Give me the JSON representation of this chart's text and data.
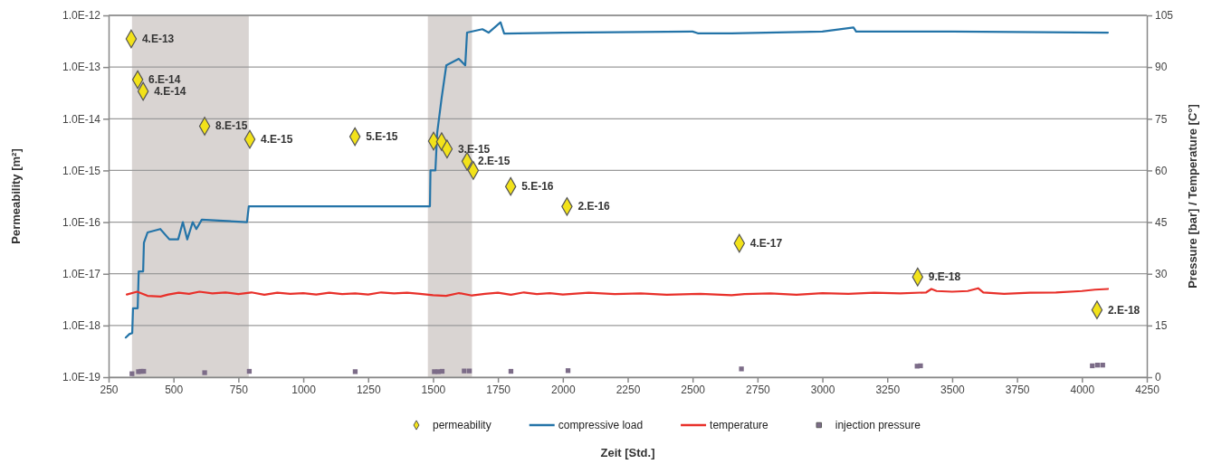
{
  "chart_data": {
    "type": "scatter",
    "xlabel": "Zeit [Std.]",
    "ylabel": "Permeability  [m²]",
    "y2label": "Pressure [bar]  /  Temperature [C°]",
    "xlim": [
      250,
      4250
    ],
    "xticks": [
      250,
      500,
      750,
      1000,
      1250,
      1500,
      1750,
      2000,
      2250,
      2500,
      2750,
      3000,
      3250,
      3500,
      3750,
      4000,
      4250
    ],
    "ylim": [
      1e-19,
      1e-12
    ],
    "yticks": [
      {
        "value": 1e-19,
        "label": "1.0E-19"
      },
      {
        "value": 1e-18,
        "label": "1.0E-18"
      },
      {
        "value": 1e-17,
        "label": "1.0E-17"
      },
      {
        "value": 1e-16,
        "label": "1.0E-16"
      },
      {
        "value": 1e-15,
        "label": "1.0E-15"
      },
      {
        "value": 1e-14,
        "label": "1.0E-14"
      },
      {
        "value": 1e-13,
        "label": "1.0E-13"
      },
      {
        "value": 1e-12,
        "label": "1.0E-12"
      }
    ],
    "log": "y",
    "y2lim": [
      0,
      105
    ],
    "y2ticks": [
      0,
      15,
      30,
      45,
      60,
      75,
      90,
      105
    ],
    "grid": "y",
    "legend": "bottom",
    "bands": [
      {
        "axis": "x",
        "from": 340,
        "to": 790,
        "color": "#d9d4d2"
      },
      {
        "axis": "x",
        "from": 1480,
        "to": 1650,
        "color": "#d9d4d2"
      }
    ],
    "series": [
      {
        "name": "permeability",
        "marker": "diamond",
        "color": "#f2e21a",
        "x": [
          337,
          362,
          383,
          620,
          794,
          1199,
          1502,
          1533,
          1554,
          1631,
          1655,
          1799,
          2016,
          2680,
          3367,
          4058
        ],
        "values": [
          3.5e-13,
          5.7e-14,
          3.4e-14,
          7.2e-15,
          4e-15,
          4.5e-15,
          3.7e-15,
          3.6e-15,
          2.6e-15,
          1.5e-15,
          1e-15,
          4.9e-16,
          2e-16,
          3.9e-17,
          8.7e-18,
          2e-18
        ],
        "value_labels": [
          "4.E-13",
          "6.E-14",
          "4.E-14",
          "8.E-15",
          "4.E-15",
          "5.E-15",
          null,
          null,
          "3.E-15",
          "2.E-15",
          null,
          "5.E-16",
          "2.E-16",
          "4.E-17",
          "9.E-18",
          "2.E-18"
        ]
      },
      {
        "name": "compressive load",
        "type": "line",
        "axis": "y2",
        "color": "#2474a8",
        "x": [
          316,
          330,
          341,
          344,
          362,
          366,
          383,
          386,
          400,
          449,
          484,
          518,
          536,
          553,
          574,
          588,
          609,
          783,
          790,
          1488,
          1490,
          1509,
          1516,
          1533,
          1551,
          1599,
          1624,
          1631,
          1690,
          1714,
          1760,
          1774,
          2000,
          2500,
          2520,
          2650,
          3000,
          3120,
          3130,
          3500,
          4100
        ],
        "values": [
          11.5,
          12.5,
          12.8,
          20,
          20,
          30.7,
          30.7,
          39,
          42,
          43,
          40,
          40,
          45,
          40,
          45,
          43,
          45.7,
          45,
          49.6,
          49.6,
          60,
          60,
          71,
          81,
          90.5,
          92.4,
          90.5,
          100,
          101,
          100,
          103,
          99.7,
          100,
          100.3,
          99.8,
          99.8,
          100.3,
          101.5,
          100.3,
          100.3,
          100
        ]
      },
      {
        "name": "temperature",
        "type": "line",
        "axis": "y2",
        "color": "#e8302a",
        "x": [
          320,
          360,
          400,
          450,
          480,
          520,
          560,
          600,
          650,
          700,
          750,
          800,
          850,
          900,
          950,
          1000,
          1050,
          1100,
          1150,
          1200,
          1250,
          1300,
          1350,
          1400,
          1450,
          1500,
          1550,
          1600,
          1650,
          1700,
          1750,
          1800,
          1850,
          1900,
          1950,
          2000,
          2100,
          2200,
          2300,
          2400,
          2530,
          2650,
          2700,
          2800,
          2900,
          3000,
          3100,
          3200,
          3300,
          3400,
          3420,
          3440,
          3500,
          3560,
          3600,
          3620,
          3700,
          3800,
          3900,
          4000,
          4050,
          4100
        ],
        "values": [
          24,
          24.8,
          23.6,
          23.4,
          24,
          24.5,
          24.2,
          24.8,
          24.3,
          24.6,
          24.1,
          24.6,
          23.9,
          24.5,
          24.2,
          24.4,
          24,
          24.5,
          24.1,
          24.3,
          24,
          24.6,
          24.3,
          24.5,
          24.2,
          23.8,
          23.6,
          24.4,
          23.7,
          24.2,
          24.5,
          23.9,
          24.6,
          24.1,
          24.4,
          24,
          24.5,
          24.1,
          24.3,
          23.9,
          24.2,
          23.8,
          24.1,
          24.3,
          23.9,
          24.4,
          24.2,
          24.5,
          24.3,
          24.6,
          25.6,
          25,
          24.8,
          25,
          25.8,
          24.6,
          24.2,
          24.5,
          24.6,
          25,
          25.4,
          25.6
        ]
      },
      {
        "name": "injection pressure",
        "type": "scatter",
        "marker": "square",
        "axis": "y2",
        "color": "#7c6c88",
        "x": [
          340,
          365,
          375,
          385,
          620,
          792,
          1200,
          1505,
          1520,
          1535,
          1620,
          1640,
          1800,
          2020,
          2688,
          3365,
          3378,
          4040,
          4060,
          4080
        ],
        "values": [
          1,
          1.6,
          1.7,
          1.7,
          1.3,
          1.7,
          1.6,
          1.6,
          1.6,
          1.7,
          1.8,
          1.8,
          1.7,
          1.9,
          2.4,
          3.2,
          3.3,
          3.3,
          3.5,
          3.5
        ]
      }
    ]
  }
}
